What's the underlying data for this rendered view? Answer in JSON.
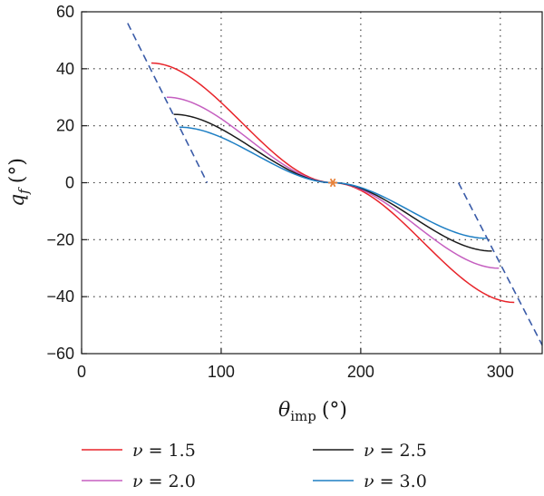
{
  "chart_data": {
    "type": "line",
    "xlabel_symbol": "θ",
    "xlabel_subscript": "imp",
    "xlabel_unit": "(°)",
    "ylabel_symbol": "q",
    "ylabel_subscript": "f",
    "ylabel_unit": "(°)",
    "xlim": [
      0,
      330
    ],
    "ylim": [
      -60,
      60
    ],
    "xticks": [
      0,
      100,
      200,
      300
    ],
    "yticks": [
      -60,
      -40,
      -20,
      0,
      20,
      40,
      60
    ],
    "xtick_labels": [
      "0",
      "100",
      "200",
      "300"
    ],
    "ytick_labels": [
      "−60",
      "−40",
      "−20",
      "0",
      "20",
      "40",
      "60"
    ],
    "grid": true,
    "legend_position": "bottom",
    "center_marker": {
      "x": 180,
      "y": 0,
      "color": "#e8823a"
    },
    "series": [
      {
        "name": "ν = 1.5",
        "legend_symbol": "ν",
        "legend_value": "= 1.5",
        "color": "#e8242a",
        "x_start": 50,
        "x_end": 310,
        "y_start": 42,
        "y_end": -42
      },
      {
        "name": "ν = 2.0",
        "legend_symbol": "ν",
        "legend_value": "= 2.0",
        "color": "#c55fc0",
        "x_start": 61,
        "x_end": 299,
        "y_start": 30,
        "y_end": -30
      },
      {
        "name": "ν = 2.5",
        "legend_symbol": "ν",
        "legend_value": "= 2.5",
        "color": "#1a1a1a",
        "x_start": 66,
        "x_end": 294,
        "y_start": 24,
        "y_end": -24
      },
      {
        "name": "ν = 3.0",
        "legend_symbol": "ν",
        "legend_value": "= 3.0",
        "color": "#1e7fc4",
        "x_start": 70,
        "x_end": 290,
        "y_start": 19.5,
        "y_end": -19.5
      }
    ],
    "boundary_lines": [
      {
        "color": "#3a5ba8",
        "x": [
          33,
          90
        ],
        "y": [
          56,
          0
        ]
      },
      {
        "color": "#3a5ba8",
        "x": [
          270,
          330
        ],
        "y": [
          0,
          -57
        ]
      }
    ]
  }
}
